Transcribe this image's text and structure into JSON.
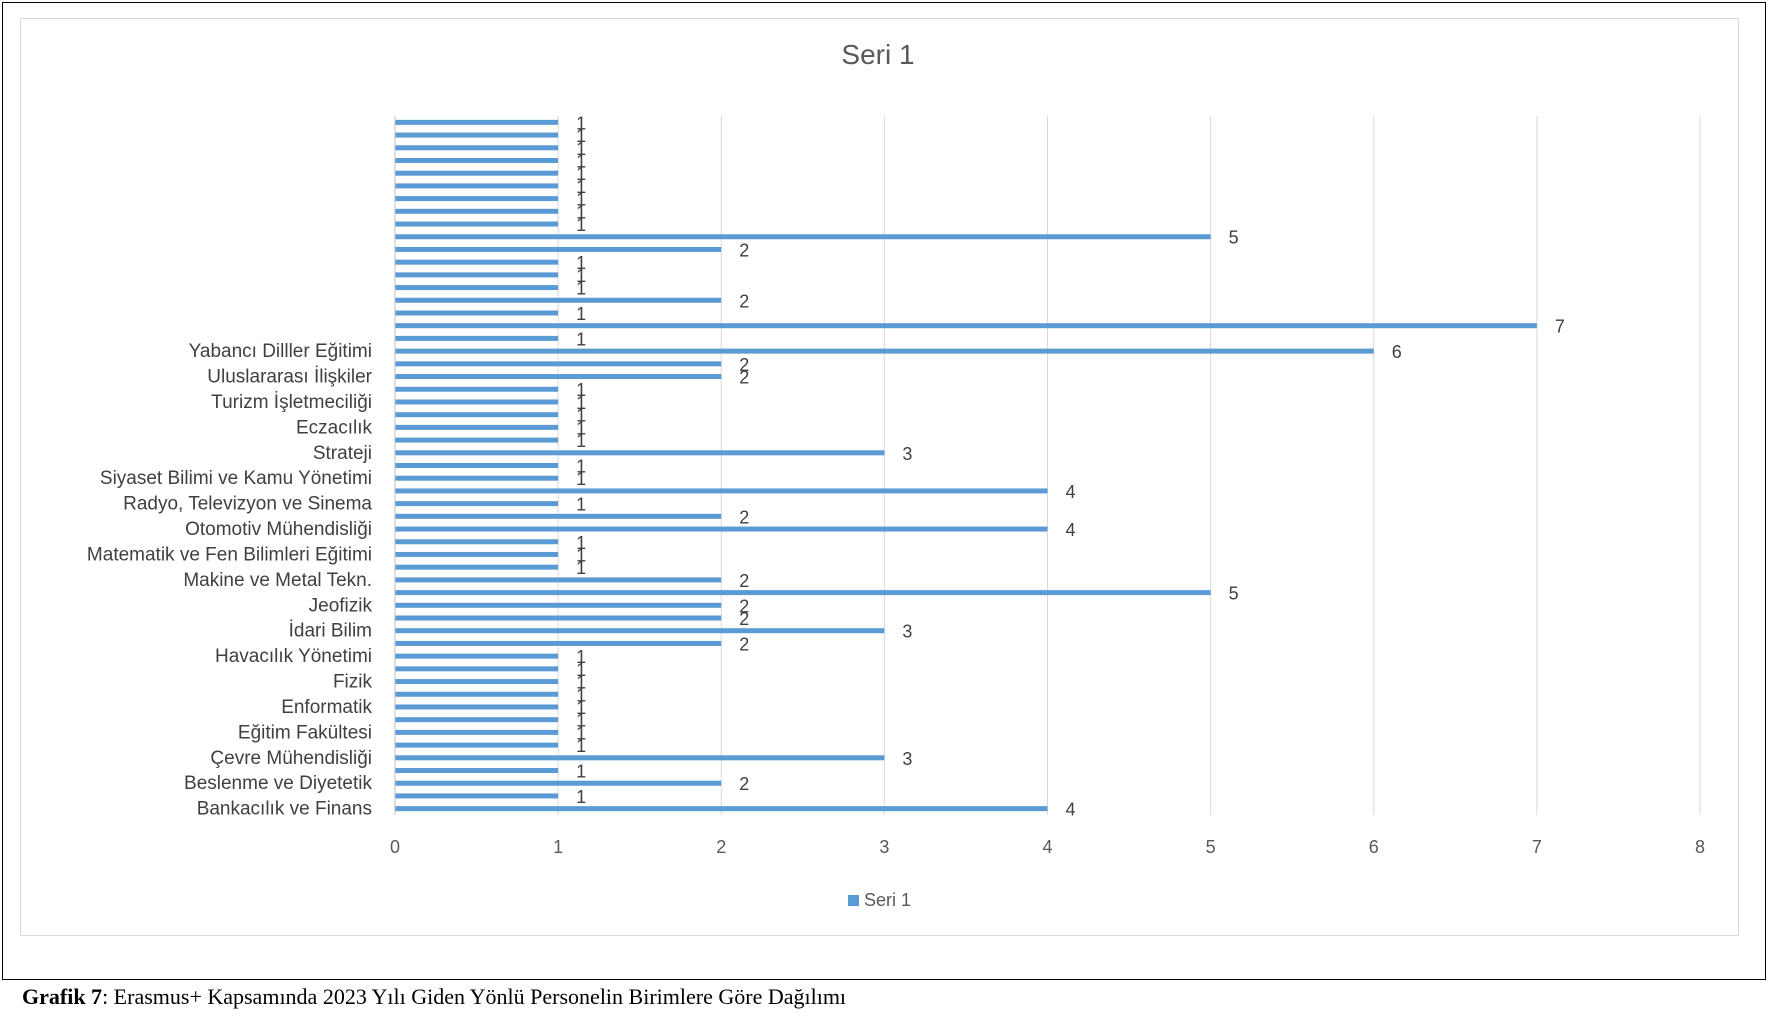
{
  "chart_data": {
    "type": "bar",
    "orientation": "horizontal",
    "title": "Seri 1",
    "xlabel": "",
    "ylabel": "",
    "xlim": [
      0,
      8
    ],
    "x_ticks": [
      "0",
      "1",
      "2",
      "3",
      "4",
      "5",
      "6",
      "7",
      "8"
    ],
    "grid": "vertical",
    "legend_position": "bottom",
    "bar_color": "#5b9bd5",
    "tick_labels": [
      "Bankacılık ve Finans",
      "Beslenme ve Diyetetik",
      "Çevre Mühendisliği",
      "Eğitim Fakültesi",
      "Enformatik",
      "Fizik",
      "Havacılık Yönetimi",
      "İdari Bilim",
      "Jeofizik",
      "Makine ve Metal Tekn.",
      "Matematik ve Fen Bilimleri Eğitimi",
      "Otomotiv Mühendisliği",
      "Radyo, Televizyon ve Sinema",
      "Siyaset Bilimi ve Kamu Yönetimi",
      "Strateji",
      "Eczacılık",
      "Turizm İşletmeciliği",
      "Uluslararası İlişkiler",
      "Yabancı Dilller Eğitimi"
    ],
    "series": [
      {
        "name": "Seri 1",
        "values": [
          4,
          1,
          2,
          1,
          3,
          1,
          1,
          1,
          1,
          1,
          1,
          1,
          1,
          2,
          3,
          2,
          2,
          5,
          2,
          1,
          1,
          1,
          4,
          2,
          1,
          4,
          1,
          1,
          3,
          1,
          1,
          1,
          1,
          1,
          2,
          2,
          6,
          1,
          7,
          1,
          2,
          1,
          1,
          1,
          2,
          5,
          1,
          1,
          1,
          1,
          1,
          1,
          1,
          1,
          1
        ]
      }
    ]
  },
  "legend": {
    "label": "Seri 1"
  },
  "caption": {
    "label": "Grafik 7",
    "text": ": Erasmus+ Kapsamında 2023 Yılı Giden Yönlü Personelin Birimlere Göre Dağılımı"
  }
}
